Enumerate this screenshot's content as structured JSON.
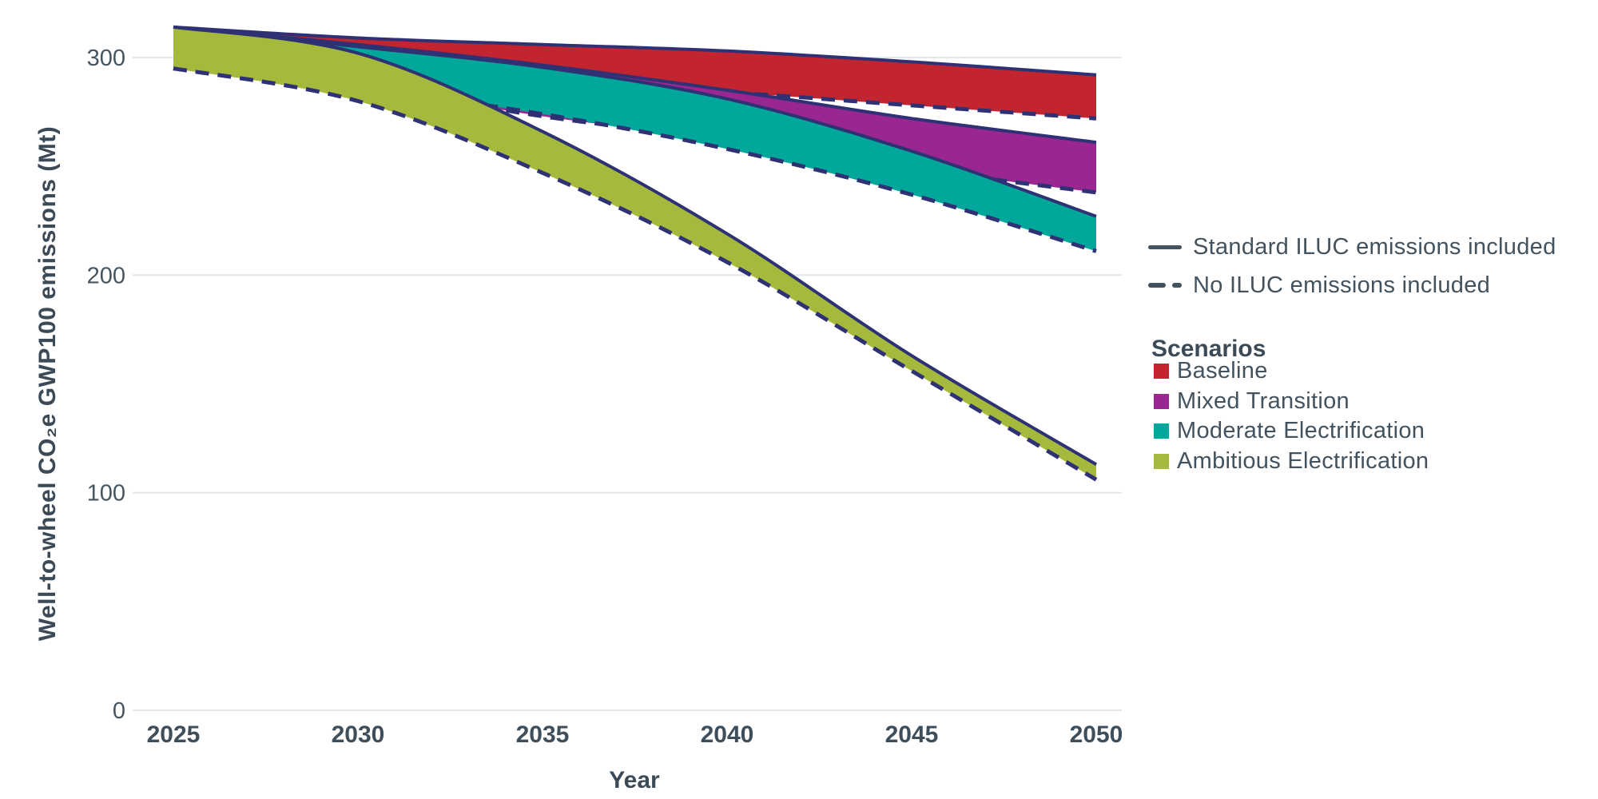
{
  "chart_data": {
    "type": "area",
    "title": "",
    "xlabel": "Year",
    "ylabel": "Well-to-wheel CO₂e GWP100 emissions (Mt)",
    "x": [
      2025,
      2030,
      2035,
      2040,
      2045,
      2050
    ],
    "x_tick_labels": [
      "2025",
      "2030",
      "2035",
      "2040",
      "2045",
      "2050"
    ],
    "y_ticks": [
      0,
      100,
      200,
      300
    ],
    "ylim": [
      0,
      317
    ],
    "grid": true,
    "legend_position": "right",
    "line_color": "#2e3173",
    "grid_color": "#e4e6e7",
    "line_styles": [
      {
        "style": "solid",
        "label": "Standard ILUC emissions included"
      },
      {
        "style": "dashed",
        "label": "No ILUC emissions included"
      }
    ],
    "scenarios_title": "Scenarios",
    "series": [
      {
        "name": "Baseline",
        "color": "#c32530",
        "solid": [
          314,
          309,
          306,
          303,
          298,
          292
        ],
        "dashed": [
          295,
          291,
          288,
          284,
          278,
          272
        ]
      },
      {
        "name": "Mixed Transition",
        "color": "#99278f",
        "solid": [
          314,
          306,
          296.5,
          285,
          272,
          261
        ],
        "dashed": [
          295,
          287,
          273,
          262,
          249,
          238
        ]
      },
      {
        "name": "Moderate Electrification",
        "color": "#00a79a",
        "solid": [
          314,
          305,
          295.5,
          281,
          257,
          227
        ],
        "dashed": [
          295,
          286,
          274,
          258,
          237,
          211
        ]
      },
      {
        "name": "Ambitious Electrification",
        "color": "#a5b93c",
        "solid": [
          314,
          302,
          266,
          219,
          163,
          113
        ],
        "dashed": [
          295,
          280,
          247,
          206,
          156,
          106
        ]
      }
    ]
  }
}
